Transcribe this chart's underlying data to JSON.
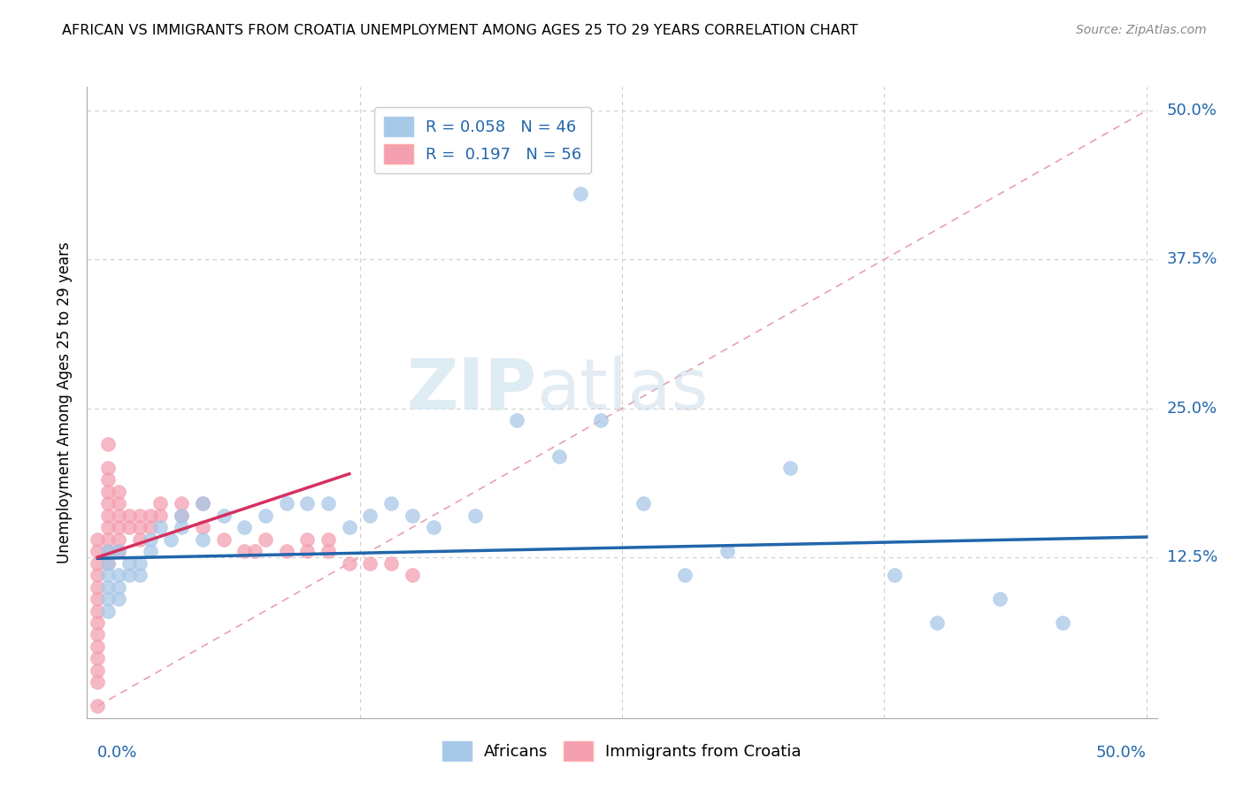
{
  "title": "AFRICAN VS IMMIGRANTS FROM CROATIA UNEMPLOYMENT AMONG AGES 25 TO 29 YEARS CORRELATION CHART",
  "source": "Source: ZipAtlas.com",
  "ylabel": "Unemployment Among Ages 25 to 29 years",
  "ytick_labels": [
    "12.5%",
    "25.0%",
    "37.5%",
    "50.0%"
  ],
  "ytick_values": [
    0.125,
    0.25,
    0.375,
    0.5
  ],
  "legend_label1": "Africans",
  "legend_label2": "Immigrants from Croatia",
  "R1": "0.058",
  "N1": "46",
  "R2": "0.197",
  "N2": "56",
  "blue_color": "#a8c8e8",
  "pink_color": "#f4a0b0",
  "blue_line_color": "#2166ac",
  "pink_line_color": "#d63060",
  "diag_color": "#e8a0b0",
  "xlim": [
    0.0,
    0.5
  ],
  "ylim": [
    0.0,
    0.5
  ],
  "africans_x": [
    0.005,
    0.005,
    0.005,
    0.005,
    0.005,
    0.005,
    0.01,
    0.01,
    0.01,
    0.01,
    0.015,
    0.015,
    0.02,
    0.02,
    0.025,
    0.025,
    0.03,
    0.035,
    0.04,
    0.04,
    0.05,
    0.05,
    0.06,
    0.07,
    0.08,
    0.09,
    0.1,
    0.11,
    0.12,
    0.13,
    0.14,
    0.15,
    0.16,
    0.18,
    0.2,
    0.22,
    0.24,
    0.26,
    0.28,
    0.3,
    0.33,
    0.38,
    0.4,
    0.43,
    0.46,
    0.23
  ],
  "africans_y": [
    0.11,
    0.12,
    0.13,
    0.1,
    0.09,
    0.08,
    0.13,
    0.11,
    0.1,
    0.09,
    0.12,
    0.11,
    0.12,
    0.11,
    0.14,
    0.13,
    0.15,
    0.14,
    0.16,
    0.15,
    0.17,
    0.14,
    0.16,
    0.15,
    0.16,
    0.17,
    0.17,
    0.17,
    0.15,
    0.16,
    0.17,
    0.16,
    0.15,
    0.16,
    0.24,
    0.21,
    0.24,
    0.17,
    0.11,
    0.13,
    0.2,
    0.11,
    0.07,
    0.09,
    0.07,
    0.43
  ],
  "croatia_x": [
    0.0,
    0.0,
    0.0,
    0.0,
    0.0,
    0.0,
    0.0,
    0.0,
    0.0,
    0.0,
    0.0,
    0.0,
    0.0,
    0.0,
    0.005,
    0.005,
    0.005,
    0.005,
    0.005,
    0.005,
    0.005,
    0.005,
    0.005,
    0.005,
    0.01,
    0.01,
    0.01,
    0.01,
    0.01,
    0.01,
    0.015,
    0.015,
    0.02,
    0.02,
    0.02,
    0.025,
    0.025,
    0.03,
    0.03,
    0.04,
    0.04,
    0.05,
    0.05,
    0.06,
    0.07,
    0.075,
    0.08,
    0.09,
    0.1,
    0.1,
    0.11,
    0.11,
    0.12,
    0.13,
    0.14,
    0.15
  ],
  "croatia_y": [
    0.0,
    0.02,
    0.03,
    0.04,
    0.05,
    0.06,
    0.07,
    0.08,
    0.09,
    0.1,
    0.11,
    0.12,
    0.13,
    0.14,
    0.12,
    0.13,
    0.14,
    0.15,
    0.16,
    0.17,
    0.18,
    0.19,
    0.2,
    0.22,
    0.13,
    0.14,
    0.15,
    0.16,
    0.17,
    0.18,
    0.15,
    0.16,
    0.14,
    0.15,
    0.16,
    0.15,
    0.16,
    0.16,
    0.17,
    0.16,
    0.17,
    0.15,
    0.17,
    0.14,
    0.13,
    0.13,
    0.14,
    0.13,
    0.13,
    0.14,
    0.13,
    0.14,
    0.12,
    0.12,
    0.12,
    0.11
  ],
  "blue_line": {
    "x0": 0.0,
    "x1": 0.5,
    "y0": 0.124,
    "y1": 0.142
  },
  "pink_line": {
    "x0": 0.0,
    "x1": 0.12,
    "y0": 0.125,
    "y1": 0.195
  }
}
